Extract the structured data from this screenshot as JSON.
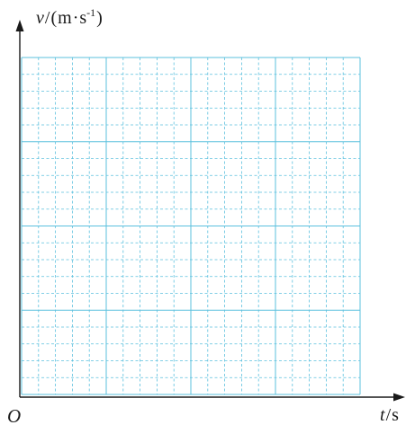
{
  "chart_data": {
    "type": "line",
    "title": "",
    "origin_label": "O",
    "xlabel": {
      "quantity": "t",
      "separator": "/",
      "unit": "s"
    },
    "ylabel": {
      "quantity": "v",
      "separator": "/",
      "unit_open": "(",
      "unit_m": "m",
      "unit_dot": "·",
      "unit_s": "s",
      "unit_exp": "-1",
      "unit_close": ")"
    },
    "series": [],
    "grid": {
      "shown": true,
      "major_columns": 4,
      "major_rows": 4,
      "minor_per_major": 5,
      "major_style": "solid",
      "minor_style": "dashed"
    },
    "legend": "none"
  },
  "colors": {
    "grid": "#5bc0de",
    "axis": "#1a1a1a"
  }
}
